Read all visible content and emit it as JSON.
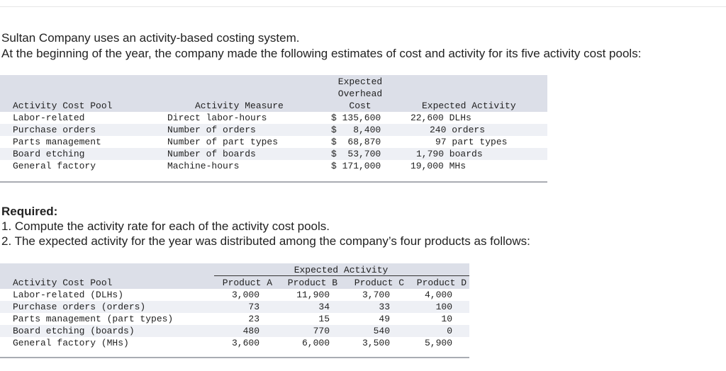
{
  "intro": {
    "line1": "Sultan Company uses an activity-based costing system.",
    "line2": "At the beginning of the year, the company made the following estimates of cost and activity for its five activity cost pools:"
  },
  "table1": {
    "headers": {
      "pool": "Activity Cost Pool",
      "measure": "Activity Measure",
      "cost_l1": "Expected",
      "cost_l2": "Overhead",
      "cost_l3": "Cost",
      "activity": "Expected Activity"
    },
    "rows": [
      {
        "pool": "Labor-related",
        "measure": "Direct labor-hours",
        "cost": "$ 135,600",
        "activity": "22,600 DLHs"
      },
      {
        "pool": "Purchase orders",
        "measure": "Number of orders",
        "cost": "$   8,400",
        "activity": "240 orders"
      },
      {
        "pool": "Parts management",
        "measure": "Number of part types",
        "cost": "$  68,870",
        "activity": "97 part types"
      },
      {
        "pool": "Board etching",
        "measure": "Number of boards",
        "cost": "$  53,700",
        "activity": "1,790 boards"
      },
      {
        "pool": "General factory",
        "measure": "Machine-hours",
        "cost": "$ 171,000",
        "activity": "19,000 MHs"
      }
    ]
  },
  "required": {
    "heading": "Required:",
    "item1": "1. Compute the activity rate for each of the activity cost pools.",
    "item2": "2. The expected activity for the year was distributed among the company’s four products as follows:"
  },
  "table2": {
    "group_header": "Expected Activity",
    "headers": {
      "pool": "Activity Cost Pool",
      "a": "Product A",
      "b": "Product B",
      "c": "Product C",
      "d": "Product D"
    },
    "rows": [
      {
        "pool": "Labor-related (DLHs)",
        "a": "3,000",
        "b": "11,900",
        "c": "3,700",
        "d": "4,000"
      },
      {
        "pool": "Purchase orders (orders)",
        "a": "73",
        "b": "34",
        "c": "33",
        "d": "100"
      },
      {
        "pool": "Parts management (part types)",
        "a": "23",
        "b": "15",
        "c": "49",
        "d": "10"
      },
      {
        "pool": "Board etching (boards)",
        "a": "480",
        "b": "770",
        "c": "540",
        "d": "0"
      },
      {
        "pool": "General factory (MHs)",
        "a": "3,600",
        "b": "6,000",
        "c": "3,500",
        "d": "5,900"
      }
    ]
  },
  "colors": {
    "header_band": "#dcdfe8",
    "row_stripe": "#eef0f5",
    "rule": "#a9acb3",
    "text": "#222222"
  }
}
